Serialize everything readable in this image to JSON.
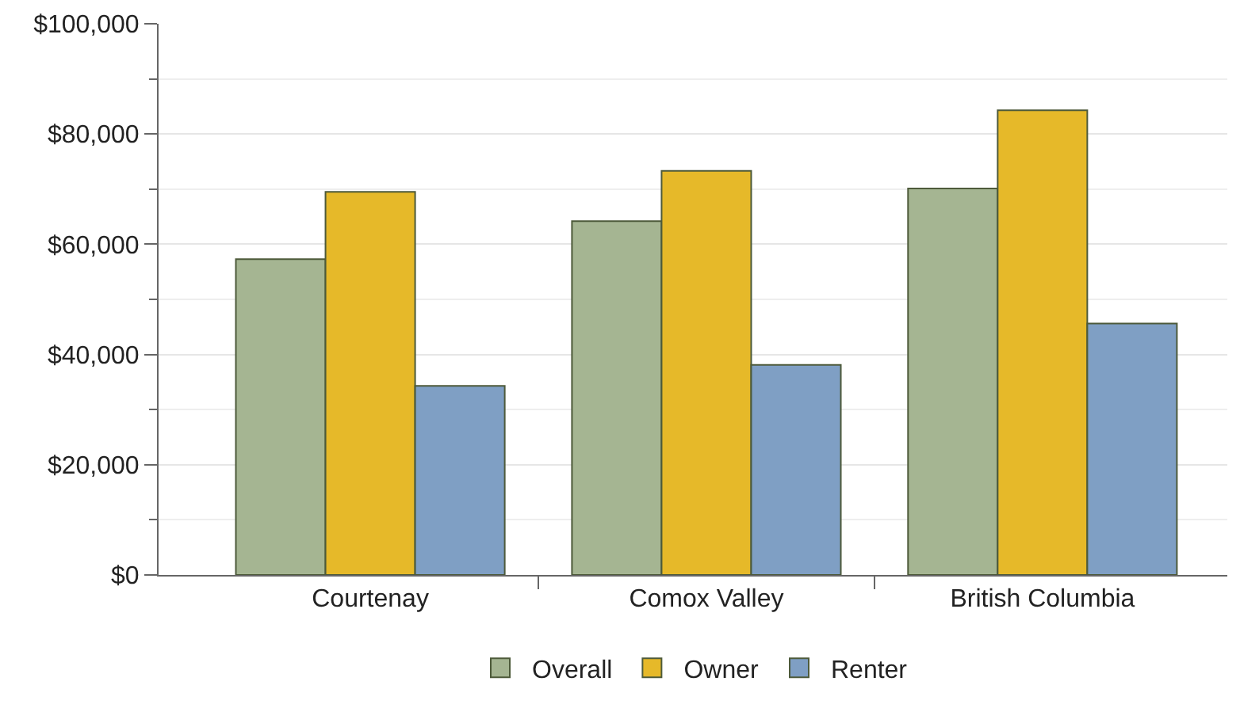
{
  "chart_data": {
    "type": "bar",
    "categories": [
      "Courtenay",
      "Comox Valley",
      "British Columbia"
    ],
    "series": [
      {
        "name": "Overall",
        "color": "#a5b592",
        "values": [
          57300,
          64200,
          70100
        ]
      },
      {
        "name": "Owner",
        "color": "#e6b929",
        "values": [
          69500,
          73300,
          84300
        ]
      },
      {
        "name": "Renter",
        "color": "#7f9fc4",
        "values": [
          34300,
          38100,
          45600
        ]
      }
    ],
    "ylim": [
      0,
      100000
    ],
    "yticks": [
      {
        "value": 0,
        "label": "$0"
      },
      {
        "value": 20000,
        "label": "$20,000"
      },
      {
        "value": 40000,
        "label": "$40,000"
      },
      {
        "value": 60000,
        "label": "$60,000"
      },
      {
        "value": 80000,
        "label": "$80,000"
      },
      {
        "value": 100000,
        "label": "$100,000"
      }
    ],
    "grid": "y",
    "legend": "bottom"
  }
}
